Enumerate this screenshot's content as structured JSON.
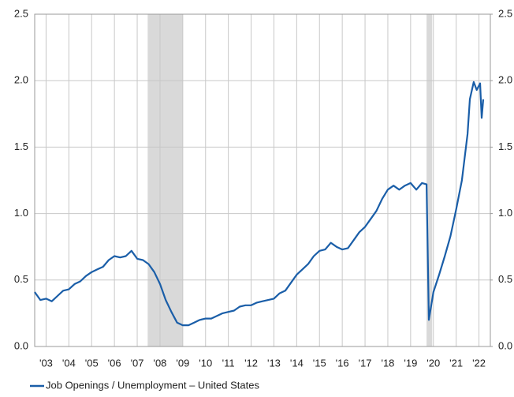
{
  "chart_data": {
    "type": "line",
    "series": [
      {
        "name": "Job Openings / Unemployment – United States",
        "color": "#1a5ea8",
        "x": [
          2003.0,
          2003.25,
          2003.5,
          2003.75,
          2004.0,
          2004.25,
          2004.5,
          2004.75,
          2005.0,
          2005.25,
          2005.5,
          2005.75,
          2006.0,
          2006.25,
          2006.5,
          2006.75,
          2007.0,
          2007.25,
          2007.5,
          2007.75,
          2008.0,
          2008.25,
          2008.5,
          2008.75,
          2009.0,
          2009.25,
          2009.5,
          2009.75,
          2010.0,
          2010.25,
          2010.5,
          2010.75,
          2011.0,
          2011.25,
          2011.5,
          2011.75,
          2012.0,
          2012.25,
          2012.5,
          2012.75,
          2013.0,
          2013.25,
          2013.5,
          2013.75,
          2014.0,
          2014.25,
          2014.5,
          2014.75,
          2015.0,
          2015.25,
          2015.5,
          2015.75,
          2016.0,
          2016.25,
          2016.5,
          2016.75,
          2017.0,
          2017.25,
          2017.5,
          2017.75,
          2018.0,
          2018.25,
          2018.5,
          2018.75,
          2019.0,
          2019.25,
          2019.5,
          2019.75,
          2020.0,
          2020.2,
          2020.3,
          2020.5,
          2020.75,
          2021.0,
          2021.25,
          2021.5,
          2021.75,
          2022.0,
          2022.1,
          2022.27,
          2022.4,
          2022.55,
          2022.62,
          2022.69
        ],
        "values": [
          0.41,
          0.35,
          0.36,
          0.34,
          0.38,
          0.42,
          0.43,
          0.47,
          0.49,
          0.53,
          0.56,
          0.58,
          0.6,
          0.65,
          0.68,
          0.67,
          0.68,
          0.72,
          0.66,
          0.65,
          0.62,
          0.56,
          0.47,
          0.35,
          0.26,
          0.18,
          0.16,
          0.16,
          0.18,
          0.2,
          0.21,
          0.21,
          0.23,
          0.25,
          0.26,
          0.27,
          0.3,
          0.31,
          0.31,
          0.33,
          0.34,
          0.35,
          0.36,
          0.4,
          0.42,
          0.48,
          0.54,
          0.58,
          0.62,
          0.68,
          0.72,
          0.73,
          0.78,
          0.75,
          0.73,
          0.74,
          0.8,
          0.86,
          0.9,
          0.96,
          1.02,
          1.11,
          1.18,
          1.21,
          1.18,
          1.21,
          1.23,
          1.18,
          1.23,
          1.22,
          0.2,
          0.41,
          0.54,
          0.68,
          0.83,
          1.03,
          1.25,
          1.6,
          1.86,
          1.99,
          1.93,
          1.98,
          1.72,
          1.86
        ]
      }
    ],
    "shaded_spans": [
      [
        2007.96,
        2009.5
      ],
      [
        2020.2,
        2020.45
      ]
    ],
    "xlim": [
      2003,
      2023
    ],
    "xticks": [
      {
        "value": 2003.5,
        "label": "'03"
      },
      {
        "value": 2004.5,
        "label": "'04"
      },
      {
        "value": 2005.5,
        "label": "'05"
      },
      {
        "value": 2006.5,
        "label": "'06"
      },
      {
        "value": 2007.5,
        "label": "'07"
      },
      {
        "value": 2008.5,
        "label": "'08"
      },
      {
        "value": 2009.5,
        "label": "'09"
      },
      {
        "value": 2010.5,
        "label": "'10"
      },
      {
        "value": 2011.5,
        "label": "'11"
      },
      {
        "value": 2012.5,
        "label": "'12"
      },
      {
        "value": 2013.5,
        "label": "'13"
      },
      {
        "value": 2014.5,
        "label": "'14"
      },
      {
        "value": 2015.5,
        "label": "'15"
      },
      {
        "value": 2016.5,
        "label": "'16"
      },
      {
        "value": 2017.5,
        "label": "'17"
      },
      {
        "value": 2018.5,
        "label": "'18"
      },
      {
        "value": 2019.5,
        "label": "'19"
      },
      {
        "value": 2020.5,
        "label": "'20"
      },
      {
        "value": 2021.5,
        "label": "'21"
      },
      {
        "value": 2022.5,
        "label": "'22"
      }
    ],
    "ylim": [
      0,
      2.5
    ],
    "yticks": [
      {
        "value": 0,
        "label": "0.0"
      },
      0.5,
      {
        "value": 1,
        "label": "1.0"
      },
      1.5,
      {
        "value": 2,
        "label": "2.0"
      },
      2.5
    ],
    "y2lim": [
      0,
      2.5
    ],
    "y2ticks": [
      {
        "value": 0,
        "label": "0.0"
      },
      0.5,
      {
        "value": 1,
        "label": "1.0"
      },
      1.5,
      {
        "value": 2,
        "label": "2.0"
      },
      2.5
    ],
    "grid": true,
    "legend": "bottom"
  }
}
